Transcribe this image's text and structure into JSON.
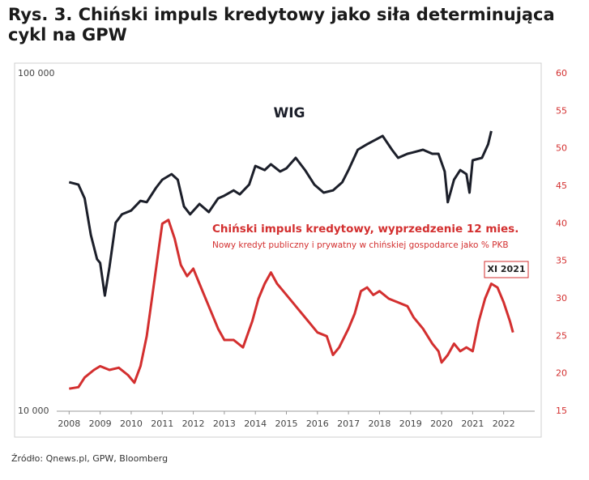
{
  "chart_data": {
    "type": "line",
    "title": "Rys. 3. Chiński impuls kredytowy jako siła determinująca cykl na GPW",
    "source": "Źródło: Qnews.pl, GPW, Bloomberg",
    "subtitle_note": "Nowy kredyt publiczny i prywatny w chińskiej gospodarce jako % PKB",
    "callout": "XI 2021",
    "xlim": [
      2007.6,
      2023.0
    ],
    "xticks": [
      2008,
      2009,
      2010,
      2011,
      2012,
      2013,
      2014,
      2015,
      2016,
      2017,
      2018,
      2019,
      2020,
      2021,
      2022
    ],
    "ylim": [
      10000,
      100000
    ],
    "ylog": true,
    "yticks": [
      {
        "value": 10000,
        "label": "10 000"
      },
      {
        "value": 100000,
        "label": "100 000"
      }
    ],
    "y2lim": [
      15,
      60
    ],
    "y2ticks": [
      15,
      20,
      25,
      30,
      35,
      40,
      45,
      50,
      55,
      60
    ],
    "grid": false,
    "series": [
      {
        "name": "WIG",
        "color": "#1c1f2a",
        "x": [
          2008.0,
          2008.3,
          2008.5,
          2008.7,
          2008.9,
          2009.0,
          2009.15,
          2009.3,
          2009.5,
          2009.7,
          2010.0,
          2010.3,
          2010.5,
          2010.8,
          2011.0,
          2011.3,
          2011.5,
          2011.7,
          2011.9,
          2012.2,
          2012.5,
          2012.8,
          2013.0,
          2013.3,
          2013.5,
          2013.8,
          2014.0,
          2014.3,
          2014.5,
          2014.8,
          2015.0,
          2015.3,
          2015.6,
          2015.9,
          2016.2,
          2016.5,
          2016.8,
          2017.0,
          2017.3,
          2017.6,
          2017.9,
          2018.1,
          2018.4,
          2018.6,
          2018.9,
          2019.1,
          2019.4,
          2019.7,
          2019.9,
          2020.1,
          2020.2,
          2020.4,
          2020.6,
          2020.8,
          2020.9,
          2021.0,
          2021.3,
          2021.5,
          2021.6
        ],
        "values": [
          47700,
          46900,
          42700,
          33300,
          28200,
          27500,
          22000,
          26700,
          36200,
          38300,
          39300,
          42000,
          41600,
          45900,
          48500,
          50400,
          48500,
          40400,
          38300,
          41100,
          38900,
          42700,
          43500,
          45100,
          43900,
          46900,
          53300,
          51800,
          53900,
          51300,
          52400,
          56300,
          51800,
          46900,
          44400,
          45100,
          47700,
          51800,
          59500,
          61800,
          63900,
          65400,
          59500,
          56300,
          57900,
          58500,
          59500,
          57900,
          57900,
          51300,
          41600,
          48500,
          51800,
          50400,
          44400,
          55400,
          56300,
          61800,
          67600
        ]
      },
      {
        "name": "Chiński impuls kredytowy, wyprzedzenie 12 mies.",
        "color": "#d32f2f",
        "axis": "y2",
        "x": [
          2008.0,
          2008.3,
          2008.5,
          2008.8,
          2009.0,
          2009.3,
          2009.6,
          2009.9,
          2010.1,
          2010.3,
          2010.5,
          2010.7,
          2010.9,
          2011.0,
          2011.2,
          2011.4,
          2011.6,
          2011.8,
          2012.0,
          2012.2,
          2012.5,
          2012.8,
          2013.0,
          2013.3,
          2013.6,
          2013.9,
          2014.1,
          2014.3,
          2014.5,
          2014.7,
          2014.9,
          2015.2,
          2015.5,
          2015.8,
          2016.0,
          2016.3,
          2016.5,
          2016.7,
          2017.0,
          2017.2,
          2017.4,
          2017.6,
          2017.8,
          2018.0,
          2018.3,
          2018.6,
          2018.9,
          2019.1,
          2019.4,
          2019.7,
          2019.9,
          2020.0,
          2020.2,
          2020.4,
          2020.6,
          2020.8,
          2021.0,
          2021.2,
          2021.4,
          2021.6,
          2021.8,
          2022.0,
          2022.2,
          2022.3
        ],
        "values": [
          18,
          18.2,
          19.5,
          20.5,
          21,
          20.5,
          20.8,
          19.8,
          18.8,
          21,
          25,
          31,
          37,
          40,
          40.5,
          38,
          34.5,
          33,
          34,
          32,
          29,
          26,
          24.5,
          24.5,
          23.5,
          27,
          30,
          32,
          33.5,
          32,
          31,
          29.5,
          28,
          26.5,
          25.5,
          25,
          22.5,
          23.5,
          26,
          28,
          31,
          31.5,
          30.5,
          31,
          30,
          29.5,
          29,
          27.5,
          26,
          24,
          23,
          21.5,
          22.5,
          24,
          23,
          23.5,
          23,
          27,
          30,
          32,
          31.5,
          29.5,
          27,
          25.5
        ]
      }
    ]
  }
}
